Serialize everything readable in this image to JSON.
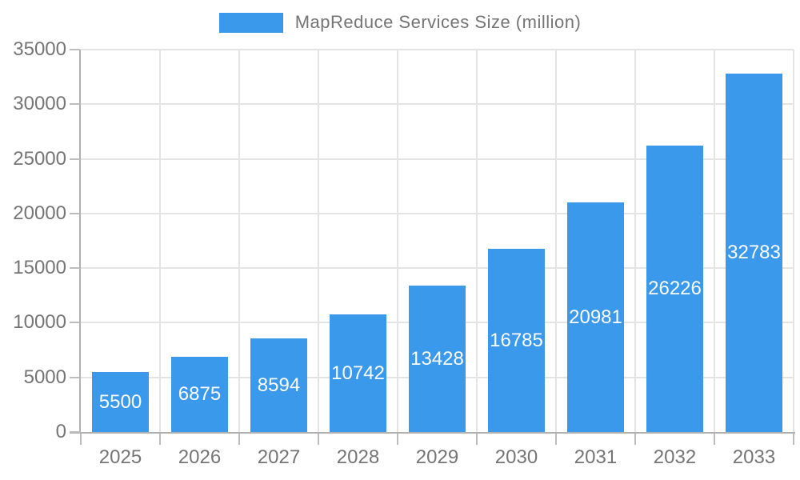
{
  "legend": {
    "label": "MapReduce Services Size (million)"
  },
  "chart_data": {
    "type": "bar",
    "title": "MapReduce Services Size (million)",
    "categories": [
      "2025",
      "2026",
      "2027",
      "2028",
      "2029",
      "2030",
      "2031",
      "2032",
      "2033"
    ],
    "values": [
      5500,
      6875,
      8594,
      10742,
      13428,
      16785,
      20981,
      26226,
      32783
    ],
    "xlabel": "",
    "ylabel": "",
    "ylim": [
      0,
      35000
    ],
    "yticks": [
      0,
      5000,
      10000,
      15000,
      20000,
      25000,
      30000,
      35000
    ],
    "grid": true,
    "legend_position": "top",
    "value_labels": "inside-center"
  },
  "colors": {
    "bar": "#3B99EC",
    "axis_line": "#b0b0b0",
    "grid_line": "#e4e4e4",
    "tick_mark": "#bdbdbd",
    "axis_text": "#757575",
    "value_text": "#ffffff",
    "background": "#ffffff"
  }
}
